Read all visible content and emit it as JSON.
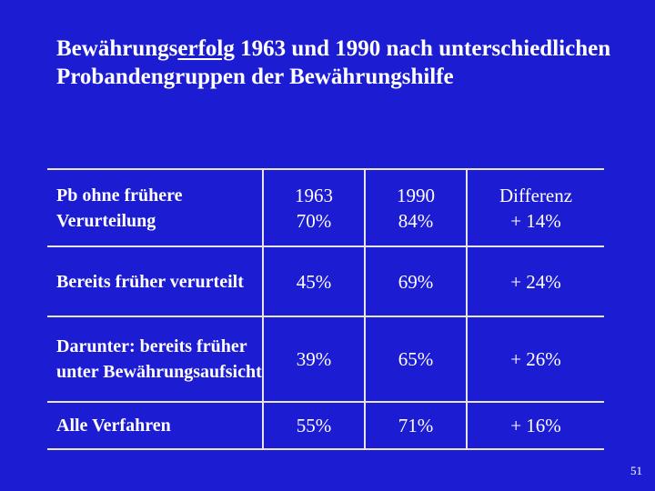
{
  "slide": {
    "title_part1": "Bewährungs",
    "title_part2": "erfolg",
    "title_part3": " 1963 und 1990 nach unterschiedlichen Probandengruppen der Bewährungshilfe",
    "page_number": "51"
  },
  "table": {
    "rows": [
      {
        "label": "Pb ohne frühere Verurteilung",
        "y1963_header": "1963",
        "y1963": "70%",
        "y1990_header": "1990",
        "y1990": "84%",
        "diff_header": "Differenz",
        "diff": "+ 14%"
      },
      {
        "label": "Bereits früher verurteilt",
        "y1963": "45%",
        "y1990": "69%",
        "diff": "+ 24%"
      },
      {
        "label": "Darunter: bereits früher unter Bewährungsaufsicht",
        "y1963": "39%",
        "y1990": "65%",
        "diff": "+ 26%"
      },
      {
        "label": "Alle Verfahren",
        "y1963": "55%",
        "y1990": "71%",
        "diff": "+ 16%"
      }
    ]
  }
}
